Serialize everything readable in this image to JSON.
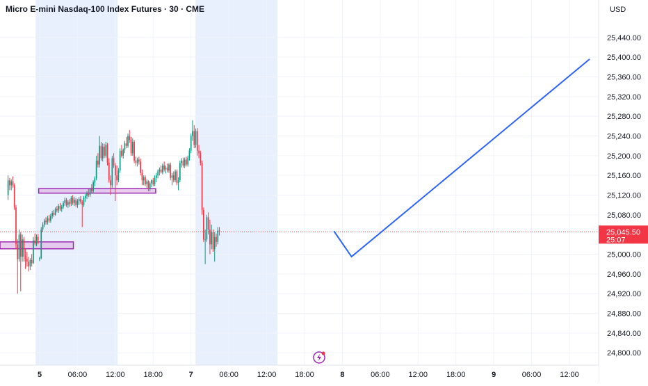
{
  "header": {
    "title": "Micro E-mini Nasdaq-100 Index Futures · 30 · CME",
    "currency": "USD"
  },
  "price_tag": {
    "price": "25,045.50",
    "countdown": "25:07"
  },
  "colors": {
    "up": "#089981",
    "down": "#f23645",
    "line": "#2962ff",
    "zone_fill": "#e1bee7",
    "zone_border": "#9c27b0",
    "session_fill": "#e8f0fe",
    "price_tag_bg": "#f23645"
  },
  "chart_data": {
    "type": "candlestick",
    "title": "Micro E-mini Nasdaq-100 Index Futures · 30 · CME",
    "currency": "USD",
    "ylim": [
      24780,
      25480
    ],
    "y_ticks": [
      "25,440.00",
      "25,400.00",
      "25,360.00",
      "25,320.00",
      "25,280.00",
      "25,240.00",
      "25,200.00",
      "25,160.00",
      "25,120.00",
      "25,080.00",
      "25,000.00",
      "24,960.00",
      "24,920.00",
      "24,880.00",
      "24,840.00",
      "24,800.00"
    ],
    "x_ticks": [
      {
        "label": "5",
        "t": 24,
        "major": true
      },
      {
        "label": "06:00",
        "t": 36
      },
      {
        "label": "12:00",
        "t": 48
      },
      {
        "label": "18:00",
        "t": 60
      },
      {
        "label": "7",
        "t": 72,
        "major": true
      },
      {
        "label": "06:00",
        "t": 84
      },
      {
        "label": "12:00",
        "t": 96
      },
      {
        "label": "18:00",
        "t": 108
      },
      {
        "label": "8",
        "t": 120,
        "major": true
      },
      {
        "label": "06:00",
        "t": 132
      },
      {
        "label": "12:00",
        "t": 144
      },
      {
        "label": "18:00",
        "t": 156
      },
      {
        "label": "9",
        "t": 168,
        "major": true
      },
      {
        "label": "06:00",
        "t": 180
      },
      {
        "label": "12:00",
        "t": 192
      }
    ],
    "x_range": [
      12.9,
      201.6
    ],
    "sessions": [
      [
        22.7,
        48.7
      ],
      [
        73.4,
        99.4
      ]
    ],
    "zones": [
      {
        "t0": 10,
        "t1": 34.7,
        "top": 25025,
        "bottom": 25011
      },
      {
        "t0": 23.7,
        "t1": 60.8,
        "top": 25133,
        "bottom": 25124
      }
    ],
    "last_price": 25045.5,
    "projection": [
      {
        "t": 117.3,
        "price": 25047
      },
      {
        "t": 122.9,
        "price": 24995
      },
      {
        "t": 198.4,
        "price": 25396
      }
    ],
    "candles": [
      {
        "t": 14,
        "o": 25120,
        "h": 25160,
        "l": 25110,
        "c": 25150
      },
      {
        "t": 14.5,
        "o": 25150,
        "h": 25155,
        "l": 25130,
        "c": 25140
      },
      {
        "t": 15,
        "o": 25140,
        "h": 25152,
        "l": 25130,
        "c": 25148
      },
      {
        "t": 15.5,
        "o": 25148,
        "h": 25158,
        "l": 25135,
        "c": 25140
      },
      {
        "t": 16,
        "o": 25140,
        "h": 25144,
        "l": 25090,
        "c": 25095
      },
      {
        "t": 16.5,
        "o": 25095,
        "h": 25100,
        "l": 25010,
        "c": 25020
      },
      {
        "t": 17,
        "o": 25020,
        "h": 25030,
        "l": 24920,
        "c": 24990
      },
      {
        "t": 17.5,
        "o": 24990,
        "h": 25050,
        "l": 24985,
        "c": 25040
      },
      {
        "t": 18,
        "o": 25040,
        "h": 25045,
        "l": 24925,
        "c": 24995
      },
      {
        "t": 18.5,
        "o": 24995,
        "h": 25040,
        "l": 24985,
        "c": 25030
      },
      {
        "t": 19,
        "o": 25030,
        "h": 25035,
        "l": 24985,
        "c": 24995
      },
      {
        "t": 19.5,
        "o": 24995,
        "h": 25010,
        "l": 24970,
        "c": 24990
      },
      {
        "t": 20,
        "o": 24990,
        "h": 25005,
        "l": 24975,
        "c": 24985
      },
      {
        "t": 20.5,
        "o": 24985,
        "h": 24995,
        "l": 24965,
        "c": 24975
      },
      {
        "t": 21,
        "o": 24975,
        "h": 24992,
        "l": 24968,
        "c": 24988
      },
      {
        "t": 21.5,
        "o": 24988,
        "h": 25000,
        "l": 24975,
        "c": 24982
      },
      {
        "t": 22,
        "o": 24982,
        "h": 25035,
        "l": 24980,
        "c": 25028
      },
      {
        "t": 22.5,
        "o": 25028,
        "h": 25042,
        "l": 25018,
        "c": 25022
      },
      {
        "t": 23,
        "o": 25022,
        "h": 25040,
        "l": 25016,
        "c": 25035
      },
      {
        "t": 23.5,
        "o": 25035,
        "h": 25041,
        "l": 25020,
        "c": 25028
      },
      {
        "t": 24,
        "o": 24990,
        "h": 24995,
        "l": 24986,
        "c": 24992
      },
      {
        "t": 24.5,
        "o": 24992,
        "h": 25055,
        "l": 24990,
        "c": 25050
      },
      {
        "t": 25,
        "o": 25050,
        "h": 25065,
        "l": 25045,
        "c": 25060
      },
      {
        "t": 25.5,
        "o": 25060,
        "h": 25072,
        "l": 25055,
        "c": 25068
      },
      {
        "t": 26,
        "o": 25068,
        "h": 25075,
        "l": 25060,
        "c": 25065
      },
      {
        "t": 26.5,
        "o": 25065,
        "h": 25078,
        "l": 25060,
        "c": 25073
      },
      {
        "t": 27,
        "o": 25073,
        "h": 25080,
        "l": 25064,
        "c": 25068
      },
      {
        "t": 27.5,
        "o": 25068,
        "h": 25082,
        "l": 25064,
        "c": 25078
      },
      {
        "t": 28,
        "o": 25078,
        "h": 25088,
        "l": 25072,
        "c": 25084
      },
      {
        "t": 28.5,
        "o": 25084,
        "h": 25090,
        "l": 25076,
        "c": 25080
      },
      {
        "t": 29,
        "o": 25080,
        "h": 25095,
        "l": 25078,
        "c": 25092
      },
      {
        "t": 29.5,
        "o": 25092,
        "h": 25098,
        "l": 25085,
        "c": 25089
      },
      {
        "t": 30,
        "o": 25089,
        "h": 25102,
        "l": 25084,
        "c": 25098
      },
      {
        "t": 30.5,
        "o": 25098,
        "h": 25104,
        "l": 25088,
        "c": 25092
      },
      {
        "t": 31,
        "o": 25092,
        "h": 25100,
        "l": 25086,
        "c": 25096
      },
      {
        "t": 31.5,
        "o": 25096,
        "h": 25108,
        "l": 25092,
        "c": 25104
      },
      {
        "t": 32,
        "o": 25104,
        "h": 25115,
        "l": 25098,
        "c": 25110
      },
      {
        "t": 32.5,
        "o": 25110,
        "h": 25114,
        "l": 25096,
        "c": 25100
      },
      {
        "t": 33,
        "o": 25100,
        "h": 25110,
        "l": 25094,
        "c": 25106
      },
      {
        "t": 33.5,
        "o": 25106,
        "h": 25112,
        "l": 25096,
        "c": 25102
      },
      {
        "t": 34,
        "o": 25102,
        "h": 25118,
        "l": 25098,
        "c": 25114
      },
      {
        "t": 34.5,
        "o": 25114,
        "h": 25120,
        "l": 25100,
        "c": 25104
      },
      {
        "t": 35,
        "o": 25104,
        "h": 25116,
        "l": 25098,
        "c": 25110
      },
      {
        "t": 35.5,
        "o": 25110,
        "h": 25114,
        "l": 25096,
        "c": 25100
      },
      {
        "t": 36,
        "o": 25100,
        "h": 25112,
        "l": 25094,
        "c": 25108
      },
      {
        "t": 36.5,
        "o": 25108,
        "h": 25116,
        "l": 25100,
        "c": 25112
      },
      {
        "t": 37,
        "o": 25112,
        "h": 25118,
        "l": 25102,
        "c": 25106
      },
      {
        "t": 37.5,
        "o": 25106,
        "h": 25110,
        "l": 25055,
        "c": 25100
      },
      {
        "t": 38,
        "o": 25100,
        "h": 25118,
        "l": 25096,
        "c": 25114
      },
      {
        "t": 38.5,
        "o": 25114,
        "h": 25122,
        "l": 25106,
        "c": 25118
      },
      {
        "t": 39,
        "o": 25118,
        "h": 25128,
        "l": 25112,
        "c": 25124
      },
      {
        "t": 39.5,
        "o": 25124,
        "h": 25132,
        "l": 25116,
        "c": 25120
      },
      {
        "t": 40,
        "o": 25120,
        "h": 25135,
        "l": 25116,
        "c": 25132
      },
      {
        "t": 40.5,
        "o": 25132,
        "h": 25142,
        "l": 25124,
        "c": 25128
      },
      {
        "t": 41,
        "o": 25128,
        "h": 25150,
        "l": 25124,
        "c": 25146
      },
      {
        "t": 41.5,
        "o": 25146,
        "h": 25158,
        "l": 25138,
        "c": 25154
      },
      {
        "t": 42,
        "o": 25154,
        "h": 25200,
        "l": 25150,
        "c": 25190
      },
      {
        "t": 42.5,
        "o": 25190,
        "h": 25205,
        "l": 25176,
        "c": 25182
      },
      {
        "t": 43,
        "o": 25182,
        "h": 25240,
        "l": 25176,
        "c": 25220
      },
      {
        "t": 43.5,
        "o": 25220,
        "h": 25228,
        "l": 25190,
        "c": 25195
      },
      {
        "t": 44,
        "o": 25195,
        "h": 25225,
        "l": 25188,
        "c": 25218
      },
      {
        "t": 44.5,
        "o": 25218,
        "h": 25224,
        "l": 25195,
        "c": 25200
      },
      {
        "t": 45,
        "o": 25200,
        "h": 25228,
        "l": 25196,
        "c": 25222
      },
      {
        "t": 45.5,
        "o": 25222,
        "h": 25226,
        "l": 25180,
        "c": 25186
      },
      {
        "t": 46,
        "o": 25186,
        "h": 25195,
        "l": 25145,
        "c": 25150
      },
      {
        "t": 46.5,
        "o": 25150,
        "h": 25160,
        "l": 25120,
        "c": 25140
      },
      {
        "t": 47,
        "o": 25140,
        "h": 25200,
        "l": 25135,
        "c": 25195
      },
      {
        "t": 47.5,
        "o": 25195,
        "h": 25205,
        "l": 25175,
        "c": 25180
      },
      {
        "t": 48,
        "o": 25180,
        "h": 25185,
        "l": 25108,
        "c": 25160
      },
      {
        "t": 48.5,
        "o": 25160,
        "h": 25180,
        "l": 25140,
        "c": 25150
      },
      {
        "t": 49,
        "o": 25150,
        "h": 25175,
        "l": 25146,
        "c": 25170
      },
      {
        "t": 49.5,
        "o": 25170,
        "h": 25215,
        "l": 25165,
        "c": 25210
      },
      {
        "t": 50,
        "o": 25210,
        "h": 25222,
        "l": 25196,
        "c": 25200
      },
      {
        "t": 50.5,
        "o": 25200,
        "h": 25215,
        "l": 25194,
        "c": 25212
      },
      {
        "t": 51,
        "o": 25212,
        "h": 25230,
        "l": 25205,
        "c": 25225
      },
      {
        "t": 51.5,
        "o": 25225,
        "h": 25238,
        "l": 25215,
        "c": 25220
      },
      {
        "t": 52,
        "o": 25220,
        "h": 25245,
        "l": 25216,
        "c": 25240
      },
      {
        "t": 52.5,
        "o": 25240,
        "h": 25252,
        "l": 25226,
        "c": 25232
      },
      {
        "t": 53,
        "o": 25232,
        "h": 25238,
        "l": 25200,
        "c": 25205
      },
      {
        "t": 53.5,
        "o": 25205,
        "h": 25235,
        "l": 25200,
        "c": 25228
      },
      {
        "t": 54,
        "o": 25228,
        "h": 25232,
        "l": 25185,
        "c": 25190
      },
      {
        "t": 54.5,
        "o": 25190,
        "h": 25198,
        "l": 25180,
        "c": 25186
      },
      {
        "t": 55,
        "o": 25186,
        "h": 25196,
        "l": 25178,
        "c": 25192
      },
      {
        "t": 55.5,
        "o": 25192,
        "h": 25198,
        "l": 25182,
        "c": 25188
      },
      {
        "t": 56,
        "o": 25188,
        "h": 25194,
        "l": 25160,
        "c": 25165
      },
      {
        "t": 56.5,
        "o": 25165,
        "h": 25172,
        "l": 25140,
        "c": 25150
      },
      {
        "t": 57,
        "o": 25150,
        "h": 25160,
        "l": 25140,
        "c": 25156
      },
      {
        "t": 57.5,
        "o": 25156,
        "h": 25160,
        "l": 25138,
        "c": 25142
      },
      {
        "t": 58,
        "o": 25142,
        "h": 25152,
        "l": 25135,
        "c": 25148
      },
      {
        "t": 58.5,
        "o": 25148,
        "h": 25150,
        "l": 25128,
        "c": 25132
      },
      {
        "t": 59,
        "o": 25132,
        "h": 25148,
        "l": 25128,
        "c": 25144
      },
      {
        "t": 59.5,
        "o": 25144,
        "h": 25152,
        "l": 25136,
        "c": 25150
      },
      {
        "t": 60,
        "o": 25150,
        "h": 25155,
        "l": 25138,
        "c": 25142
      },
      {
        "t": 60.5,
        "o": 25142,
        "h": 25160,
        "l": 25138,
        "c": 25155
      },
      {
        "t": 61,
        "o": 25155,
        "h": 25165,
        "l": 25146,
        "c": 25160
      },
      {
        "t": 61.5,
        "o": 25160,
        "h": 25172,
        "l": 25154,
        "c": 25168
      },
      {
        "t": 62,
        "o": 25168,
        "h": 25176,
        "l": 25160,
        "c": 25172
      },
      {
        "t": 62.5,
        "o": 25172,
        "h": 25180,
        "l": 25164,
        "c": 25166
      },
      {
        "t": 63,
        "o": 25166,
        "h": 25184,
        "l": 25162,
        "c": 25180
      },
      {
        "t": 63.5,
        "o": 25180,
        "h": 25188,
        "l": 25168,
        "c": 25172
      },
      {
        "t": 64,
        "o": 25172,
        "h": 25180,
        "l": 25164,
        "c": 25176
      },
      {
        "t": 64.5,
        "o": 25176,
        "h": 25184,
        "l": 25166,
        "c": 25170
      },
      {
        "t": 65,
        "o": 25170,
        "h": 25185,
        "l": 25165,
        "c": 25182
      },
      {
        "t": 65.5,
        "o": 25182,
        "h": 25186,
        "l": 25150,
        "c": 25155
      },
      {
        "t": 66,
        "o": 25155,
        "h": 25165,
        "l": 25140,
        "c": 25160
      },
      {
        "t": 66.5,
        "o": 25160,
        "h": 25168,
        "l": 25146,
        "c": 25150
      },
      {
        "t": 67,
        "o": 25150,
        "h": 25172,
        "l": 25146,
        "c": 25168
      },
      {
        "t": 67.5,
        "o": 25168,
        "h": 25172,
        "l": 25140,
        "c": 25145
      },
      {
        "t": 68,
        "o": 25145,
        "h": 25156,
        "l": 25130,
        "c": 25150
      },
      {
        "t": 68.5,
        "o": 25150,
        "h": 25190,
        "l": 25146,
        "c": 25185
      },
      {
        "t": 69,
        "o": 25185,
        "h": 25195,
        "l": 25176,
        "c": 25190
      },
      {
        "t": 69.5,
        "o": 25190,
        "h": 25196,
        "l": 25176,
        "c": 25180
      },
      {
        "t": 70,
        "o": 25180,
        "h": 25196,
        "l": 25175,
        "c": 25192
      },
      {
        "t": 70.5,
        "o": 25192,
        "h": 25198,
        "l": 25178,
        "c": 25182
      },
      {
        "t": 71,
        "o": 25182,
        "h": 25200,
        "l": 25178,
        "c": 25196
      },
      {
        "t": 71.5,
        "o": 25196,
        "h": 25215,
        "l": 25190,
        "c": 25210
      },
      {
        "t": 72,
        "o": 25210,
        "h": 25245,
        "l": 25205,
        "c": 25240
      },
      {
        "t": 72.5,
        "o": 25240,
        "h": 25272,
        "l": 25230,
        "c": 25250
      },
      {
        "t": 73,
        "o": 25250,
        "h": 25262,
        "l": 25215,
        "c": 25222
      },
      {
        "t": 73.5,
        "o": 25222,
        "h": 25255,
        "l": 25216,
        "c": 25250
      },
      {
        "t": 74,
        "o": 25250,
        "h": 25256,
        "l": 25200,
        "c": 25210
      },
      {
        "t": 74.5,
        "o": 25210,
        "h": 25222,
        "l": 25195,
        "c": 25205
      },
      {
        "t": 75,
        "o": 25205,
        "h": 25210,
        "l": 25180,
        "c": 25185
      },
      {
        "t": 75.5,
        "o": 25185,
        "h": 25190,
        "l": 25080,
        "c": 25090
      },
      {
        "t": 76,
        "o": 25090,
        "h": 25095,
        "l": 25025,
        "c": 25030
      },
      {
        "t": 76.5,
        "o": 25030,
        "h": 25050,
        "l": 24980,
        "c": 25030
      },
      {
        "t": 77,
        "o": 25030,
        "h": 25080,
        "l": 25025,
        "c": 25075
      },
      {
        "t": 77.5,
        "o": 25075,
        "h": 25085,
        "l": 25040,
        "c": 25050
      },
      {
        "t": 78,
        "o": 25050,
        "h": 25070,
        "l": 25000,
        "c": 25020
      },
      {
        "t": 78.5,
        "o": 25020,
        "h": 25060,
        "l": 25010,
        "c": 25045
      },
      {
        "t": 79,
        "o": 25045,
        "h": 25050,
        "l": 25005,
        "c": 25010
      },
      {
        "t": 79.5,
        "o": 25010,
        "h": 25045,
        "l": 24985,
        "c": 25035
      },
      {
        "t": 80,
        "o": 25035,
        "h": 25042,
        "l": 25015,
        "c": 25025
      },
      {
        "t": 80.5,
        "o": 25025,
        "h": 25055,
        "l": 25020,
        "c": 25048
      },
      {
        "t": 81,
        "o": 25048,
        "h": 25055,
        "l": 25038,
        "c": 25045.5
      }
    ]
  }
}
